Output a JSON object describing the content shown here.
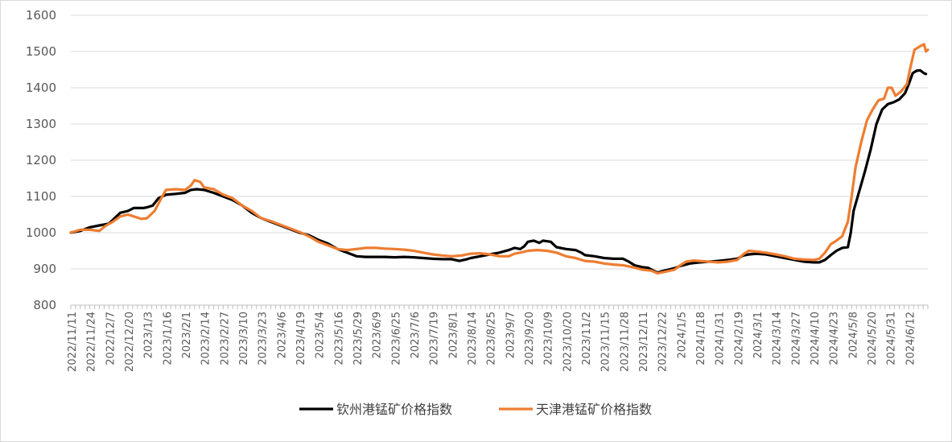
{
  "chart_data": {
    "type": "line",
    "title": "",
    "xlabel": "",
    "ylabel": "",
    "ylim": [
      800,
      1600
    ],
    "yticks": [
      800,
      900,
      1000,
      1100,
      1200,
      1300,
      1400,
      1500,
      1600
    ],
    "grid": "horizontal",
    "legend_position": "bottom",
    "x_tick_labels": [
      "2022/11/11",
      "2022/11/24",
      "2022/12/7",
      "2022/12/20",
      "2023/1/3",
      "2023/1/16",
      "2023/2/1",
      "2023/2/14",
      "2023/2/27",
      "2023/3/10",
      "2023/3/23",
      "2023/4/6",
      "2023/4/19",
      "2023/5/4",
      "2023/5/16",
      "2023/5/29",
      "2023/6/9",
      "2023/6/25",
      "2023/7/6",
      "2023/7/19",
      "2023/8/1",
      "2023/8/14",
      "2023/8/25",
      "2023/9/7",
      "2023/9/20",
      "2023/10/9",
      "2023/10/20",
      "2023/11/2",
      "2023/11/15",
      "2023/11/28",
      "2023/12/11",
      "2023/12/22",
      "2024/1/5",
      "2024/1/18",
      "2024/1/31",
      "2024/2/19",
      "2024/3/1",
      "2024/3/14",
      "2024/3/27",
      "2024/4/10",
      "2024/4/23",
      "2024/5/8",
      "2024/5/20",
      "2024/5/31",
      "2024/6/12"
    ],
    "series": [
      {
        "name": "钦州港锰矿价格指数",
        "color": "#000000",
        "points": [
          [
            0,
            1000
          ],
          [
            0.5,
            1005
          ],
          [
            1,
            1015
          ],
          [
            1.5,
            1020
          ],
          [
            2,
            1025
          ],
          [
            2.3,
            1040
          ],
          [
            2.6,
            1055
          ],
          [
            3,
            1060
          ],
          [
            3.3,
            1068
          ],
          [
            3.8,
            1068
          ],
          [
            4,
            1070
          ],
          [
            4.3,
            1075
          ],
          [
            4.6,
            1095
          ],
          [
            5,
            1105
          ],
          [
            5.5,
            1107
          ],
          [
            6,
            1110
          ],
          [
            6.3,
            1118
          ],
          [
            6.6,
            1120
          ],
          [
            7,
            1118
          ],
          [
            7.5,
            1110
          ],
          [
            8,
            1100
          ],
          [
            8.5,
            1090
          ],
          [
            9,
            1075
          ],
          [
            9.5,
            1055
          ],
          [
            10,
            1040
          ],
          [
            10.5,
            1030
          ],
          [
            11,
            1020
          ],
          [
            11.5,
            1010
          ],
          [
            12,
            1000
          ],
          [
            12.5,
            993
          ],
          [
            13,
            980
          ],
          [
            13.5,
            970
          ],
          [
            14,
            955
          ],
          [
            14.5,
            945
          ],
          [
            15,
            935
          ],
          [
            15.5,
            933
          ],
          [
            16,
            933
          ],
          [
            16.5,
            933
          ],
          [
            17,
            932
          ],
          [
            17.5,
            933
          ],
          [
            18,
            932
          ],
          [
            18.5,
            930
          ],
          [
            19,
            928
          ],
          [
            19.5,
            927
          ],
          [
            20,
            927
          ],
          [
            20.4,
            922
          ],
          [
            20.8,
            927
          ],
          [
            21,
            930
          ],
          [
            21.5,
            935
          ],
          [
            22,
            940
          ],
          [
            22.5,
            945
          ],
          [
            23,
            952
          ],
          [
            23.3,
            958
          ],
          [
            23.6,
            955
          ],
          [
            23.8,
            962
          ],
          [
            24,
            975
          ],
          [
            24.3,
            978
          ],
          [
            24.6,
            972
          ],
          [
            24.8,
            978
          ],
          [
            25.2,
            975
          ],
          [
            25.5,
            960
          ],
          [
            26,
            955
          ],
          [
            26.5,
            952
          ],
          [
            26.8,
            945
          ],
          [
            27,
            938
          ],
          [
            27.5,
            935
          ],
          [
            28,
            930
          ],
          [
            28.5,
            928
          ],
          [
            29,
            928
          ],
          [
            29.3,
            920
          ],
          [
            29.6,
            910
          ],
          [
            30,
            905
          ],
          [
            30.3,
            903
          ],
          [
            30.6,
            895
          ],
          [
            30.8,
            890
          ],
          [
            31,
            893
          ],
          [
            31.3,
            897
          ],
          [
            31.7,
            902
          ],
          [
            32,
            908
          ],
          [
            32.5,
            915
          ],
          [
            33,
            918
          ],
          [
            33.5,
            920
          ],
          [
            34,
            922
          ],
          [
            34.5,
            925
          ],
          [
            35,
            928
          ],
          [
            35.3,
            937
          ],
          [
            35.6,
            940
          ],
          [
            36,
            942
          ],
          [
            36.5,
            940
          ],
          [
            37,
            935
          ],
          [
            37.5,
            930
          ],
          [
            38,
            925
          ],
          [
            38.5,
            920
          ],
          [
            39,
            918
          ],
          [
            39.3,
            918
          ],
          [
            39.6,
            925
          ],
          [
            39.9,
            938
          ],
          [
            40.2,
            950
          ],
          [
            40.5,
            958
          ],
          [
            40.8,
            960
          ],
          [
            40.95,
            1000
          ],
          [
            41.1,
            1060
          ],
          [
            41.4,
            1115
          ],
          [
            41.7,
            1170
          ],
          [
            42,
            1230
          ],
          [
            42.3,
            1300
          ],
          [
            42.6,
            1340
          ],
          [
            42.9,
            1355
          ],
          [
            43.2,
            1360
          ],
          [
            43.5,
            1368
          ],
          [
            43.8,
            1385
          ],
          [
            44,
            1410
          ],
          [
            44.2,
            1440
          ],
          [
            44.4,
            1447
          ],
          [
            44.6,
            1448
          ],
          [
            44.8,
            1440
          ],
          [
            44.9,
            1438
          ]
        ]
      },
      {
        "name": "天津港锰矿价格指数",
        "color": "#ed7d31",
        "points": [
          [
            0,
            1000
          ],
          [
            0.5,
            1008
          ],
          [
            1,
            1008
          ],
          [
            1.5,
            1005
          ],
          [
            1.8,
            1018
          ],
          [
            2.2,
            1030
          ],
          [
            2.6,
            1045
          ],
          [
            3,
            1050
          ],
          [
            3.3,
            1045
          ],
          [
            3.7,
            1038
          ],
          [
            4,
            1040
          ],
          [
            4.4,
            1060
          ],
          [
            4.8,
            1100
          ],
          [
            5,
            1118
          ],
          [
            5.5,
            1120
          ],
          [
            6,
            1118
          ],
          [
            6.3,
            1130
          ],
          [
            6.5,
            1145
          ],
          [
            6.8,
            1140
          ],
          [
            7,
            1125
          ],
          [
            7.5,
            1120
          ],
          [
            8,
            1105
          ],
          [
            8.5,
            1095
          ],
          [
            9,
            1075
          ],
          [
            9.5,
            1060
          ],
          [
            10,
            1040
          ],
          [
            10.5,
            1032
          ],
          [
            11,
            1022
          ],
          [
            11.5,
            1012
          ],
          [
            12,
            1002
          ],
          [
            12.5,
            990
          ],
          [
            13,
            975
          ],
          [
            13.5,
            965
          ],
          [
            14,
            955
          ],
          [
            14.5,
            952
          ],
          [
            15,
            955
          ],
          [
            15.5,
            958
          ],
          [
            16,
            958
          ],
          [
            16.5,
            956
          ],
          [
            17,
            955
          ],
          [
            17.5,
            953
          ],
          [
            18,
            950
          ],
          [
            18.5,
            945
          ],
          [
            19,
            940
          ],
          [
            19.5,
            937
          ],
          [
            20,
            935
          ],
          [
            20.5,
            937
          ],
          [
            21,
            942
          ],
          [
            21.5,
            943
          ],
          [
            22,
            940
          ],
          [
            22.5,
            935
          ],
          [
            23,
            935
          ],
          [
            23.3,
            942
          ],
          [
            23.6,
            945
          ],
          [
            24,
            950
          ],
          [
            24.5,
            952
          ],
          [
            25,
            950
          ],
          [
            25.5,
            945
          ],
          [
            26,
            935
          ],
          [
            26.5,
            930
          ],
          [
            27,
            922
          ],
          [
            27.5,
            920
          ],
          [
            28,
            915
          ],
          [
            28.5,
            912
          ],
          [
            29,
            910
          ],
          [
            29.5,
            905
          ],
          [
            30,
            898
          ],
          [
            30.5,
            895
          ],
          [
            30.8,
            888
          ],
          [
            31,
            890
          ],
          [
            31.3,
            893
          ],
          [
            31.7,
            898
          ],
          [
            32,
            910
          ],
          [
            32.3,
            920
          ],
          [
            32.7,
            923
          ],
          [
            33,
            922
          ],
          [
            33.5,
            920
          ],
          [
            34,
            918
          ],
          [
            34.5,
            920
          ],
          [
            35,
            925
          ],
          [
            35.3,
            940
          ],
          [
            35.6,
            950
          ],
          [
            36,
            948
          ],
          [
            36.5,
            945
          ],
          [
            37,
            940
          ],
          [
            37.5,
            935
          ],
          [
            38,
            928
          ],
          [
            38.5,
            926
          ],
          [
            39,
            925
          ],
          [
            39.3,
            928
          ],
          [
            39.6,
            945
          ],
          [
            39.9,
            968
          ],
          [
            40.2,
            978
          ],
          [
            40.5,
            990
          ],
          [
            40.8,
            1030
          ],
          [
            41,
            1100
          ],
          [
            41.2,
            1180
          ],
          [
            41.5,
            1250
          ],
          [
            41.8,
            1310
          ],
          [
            42.1,
            1340
          ],
          [
            42.4,
            1365
          ],
          [
            42.7,
            1370
          ],
          [
            42.9,
            1400
          ],
          [
            43.1,
            1400
          ],
          [
            43.3,
            1378
          ],
          [
            43.6,
            1390
          ],
          [
            43.9,
            1410
          ],
          [
            44.1,
            1460
          ],
          [
            44.3,
            1505
          ],
          [
            44.6,
            1515
          ],
          [
            44.8,
            1520
          ],
          [
            44.9,
            1500
          ],
          [
            45,
            1505
          ]
        ]
      }
    ]
  }
}
